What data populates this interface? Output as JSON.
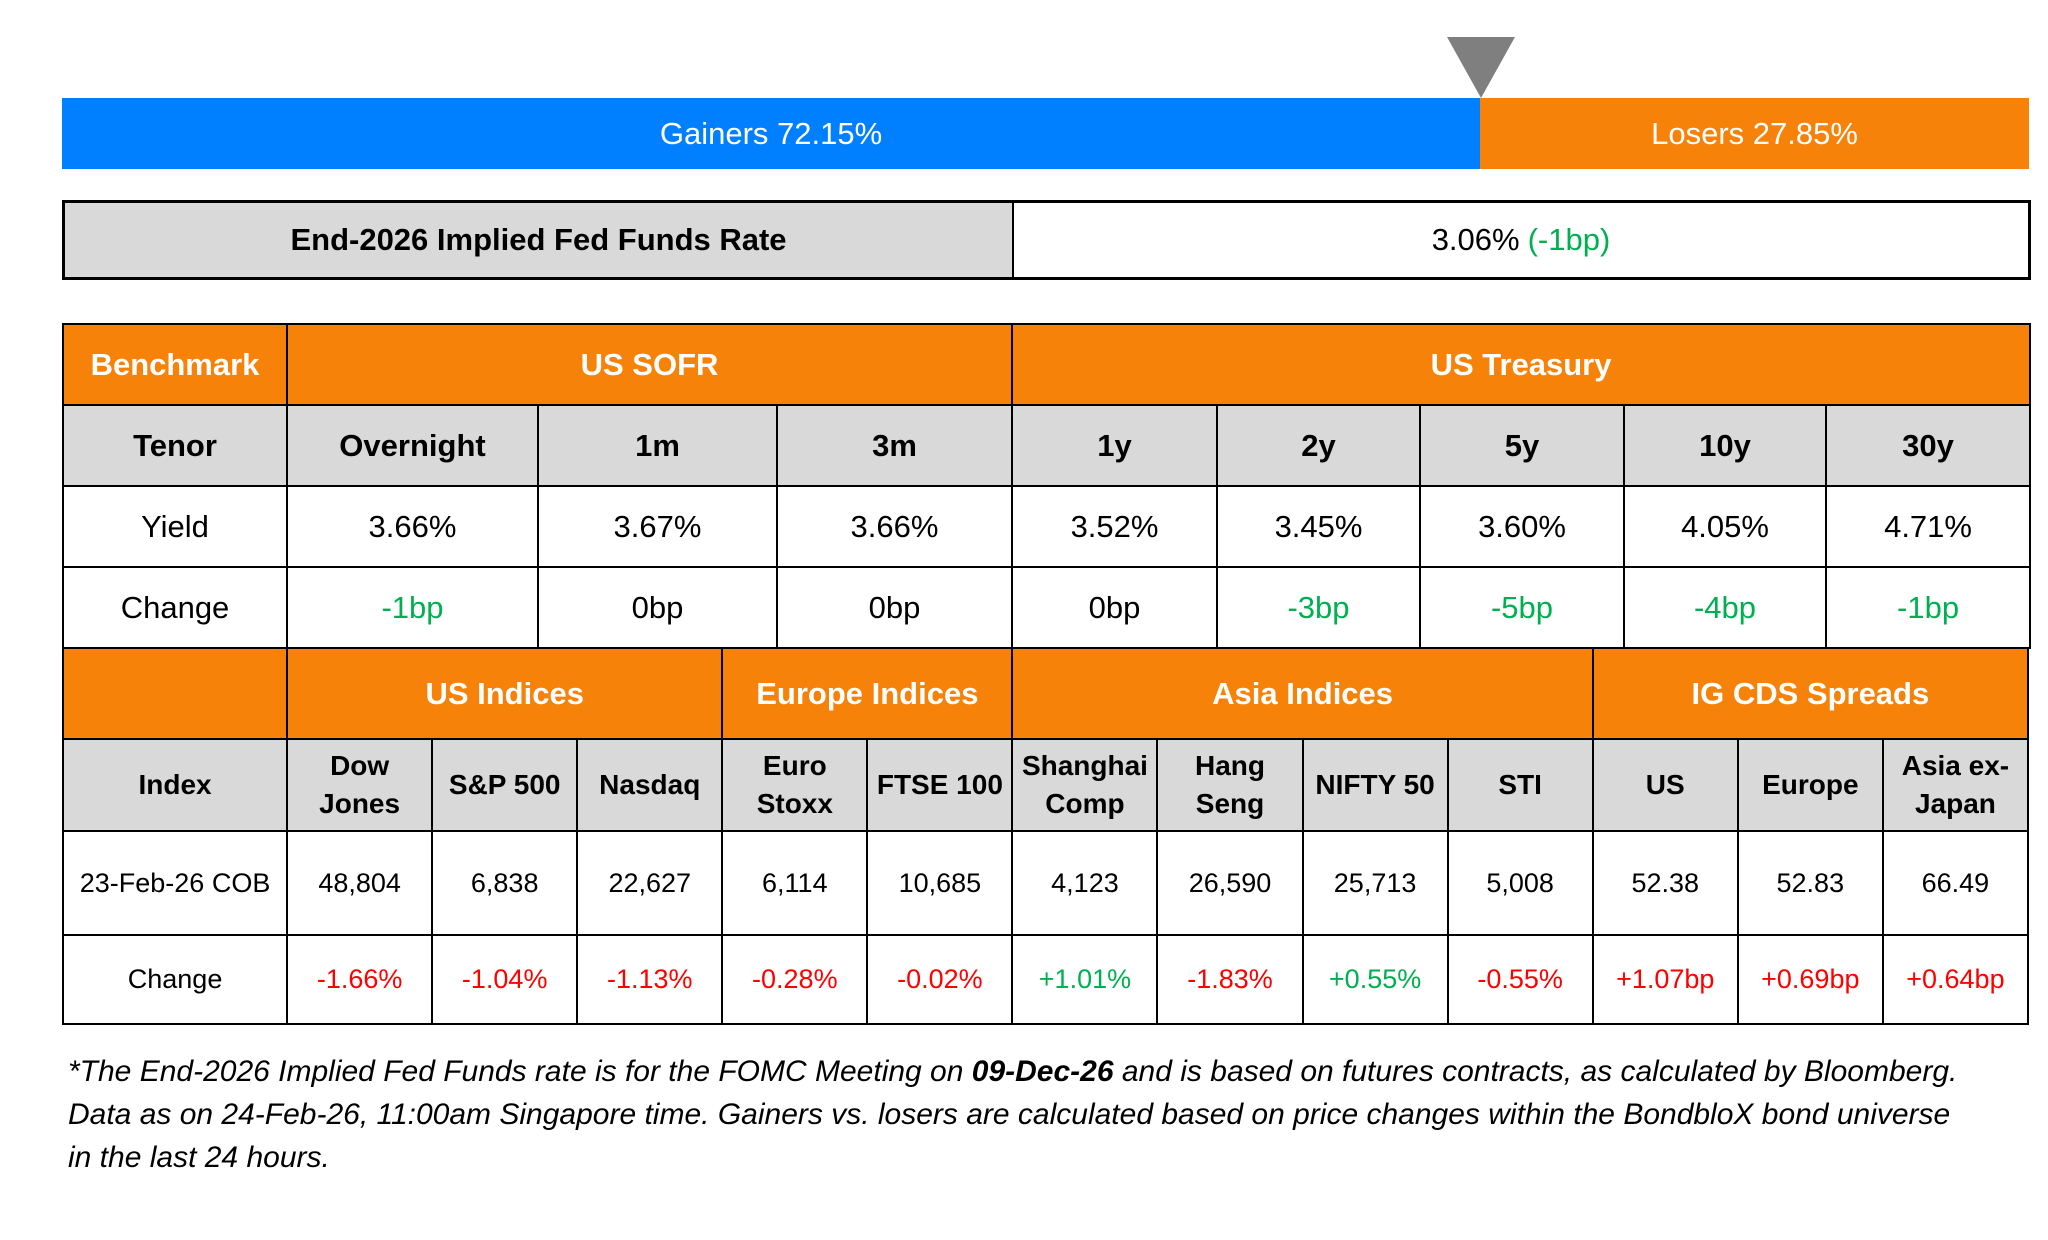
{
  "gainers_losers": {
    "gainers_label": "Gainers 72.15%",
    "losers_label": "Losers 27.85%",
    "gainers_pct": 72.15,
    "losers_pct": 27.85
  },
  "fed": {
    "label": "End-2026 Implied Fed Funds Rate",
    "value": "3.06%",
    "change": "(-1bp)"
  },
  "rates": {
    "benchmark_label": "Benchmark",
    "sofr_label": "US SOFR",
    "treasury_label": "US Treasury",
    "tenor_label": "Tenor",
    "yield_label": "Yield",
    "change_label": "Change",
    "columns": [
      {
        "tenor": "Overnight",
        "yield": "3.66%",
        "change": "-1bp",
        "dir": "down"
      },
      {
        "tenor": "1m",
        "yield": "3.67%",
        "change": "0bp",
        "dir": "flat"
      },
      {
        "tenor": "3m",
        "yield": "3.66%",
        "change": "0bp",
        "dir": "flat"
      },
      {
        "tenor": "1y",
        "yield": "3.52%",
        "change": "0bp",
        "dir": "flat"
      },
      {
        "tenor": "2y",
        "yield": "3.45%",
        "change": "-3bp",
        "dir": "down"
      },
      {
        "tenor": "5y",
        "yield": "3.60%",
        "change": "-5bp",
        "dir": "down"
      },
      {
        "tenor": "10y",
        "yield": "4.05%",
        "change": "-4bp",
        "dir": "down"
      },
      {
        "tenor": "30y",
        "yield": "4.71%",
        "change": "-1bp",
        "dir": "down"
      }
    ]
  },
  "indices": {
    "groups": [
      "US Indices",
      "Europe Indices",
      "Asia Indices",
      "IG CDS Spreads"
    ],
    "index_label": "Index",
    "date_label": "23-Feb-26 COB",
    "change_label": "Change",
    "columns": [
      {
        "name": "Dow Jones",
        "value": "48,804",
        "change": "-1.66%",
        "pos": false
      },
      {
        "name": "S&P 500",
        "value": "6,838",
        "change": "-1.04%",
        "pos": false
      },
      {
        "name": "Nasdaq",
        "value": "22,627",
        "change": "-1.13%",
        "pos": false
      },
      {
        "name": "Euro Stoxx",
        "value": "6,114",
        "change": "-0.28%",
        "pos": false
      },
      {
        "name": "FTSE 100",
        "value": "10,685",
        "change": "-0.02%",
        "pos": false
      },
      {
        "name": "Shanghai Comp",
        "value": "4,123",
        "change": "+1.01%",
        "pos": true
      },
      {
        "name": "Hang Seng",
        "value": "26,590",
        "change": "-1.83%",
        "pos": false
      },
      {
        "name": "NIFTY 50",
        "value": "25,713",
        "change": "+0.55%",
        "pos": true
      },
      {
        "name": "STI",
        "value": "5,008",
        "change": "-0.55%",
        "pos": false
      },
      {
        "name": "US",
        "value": "52.38",
        "change": "+1.07bp",
        "pos": false
      },
      {
        "name": "Europe",
        "value": "52.83",
        "change": "+0.69bp",
        "pos": false
      },
      {
        "name": "Asia ex-Japan",
        "value": "66.49",
        "change": "+0.64bp",
        "pos": false
      }
    ]
  },
  "footnote": {
    "prefix": "*The End-2026 Implied Fed Funds rate is for the FOMC Meeting on ",
    "date": "09-Dec-26",
    "suffix": " and is based on futures contracts, as calculated by Bloomberg. Data as on 24-Feb-26, 11:00am Singapore time. Gainers vs. losers are calculated based on price changes within the BondbloX bond universe in the last 24 hours."
  },
  "colors": {
    "gainers": "#0080ff",
    "losers": "#f7820a",
    "header": "#f7820a",
    "subheader": "#d9d9d9",
    "positive": "#00b050",
    "negative": "#ff0000"
  }
}
